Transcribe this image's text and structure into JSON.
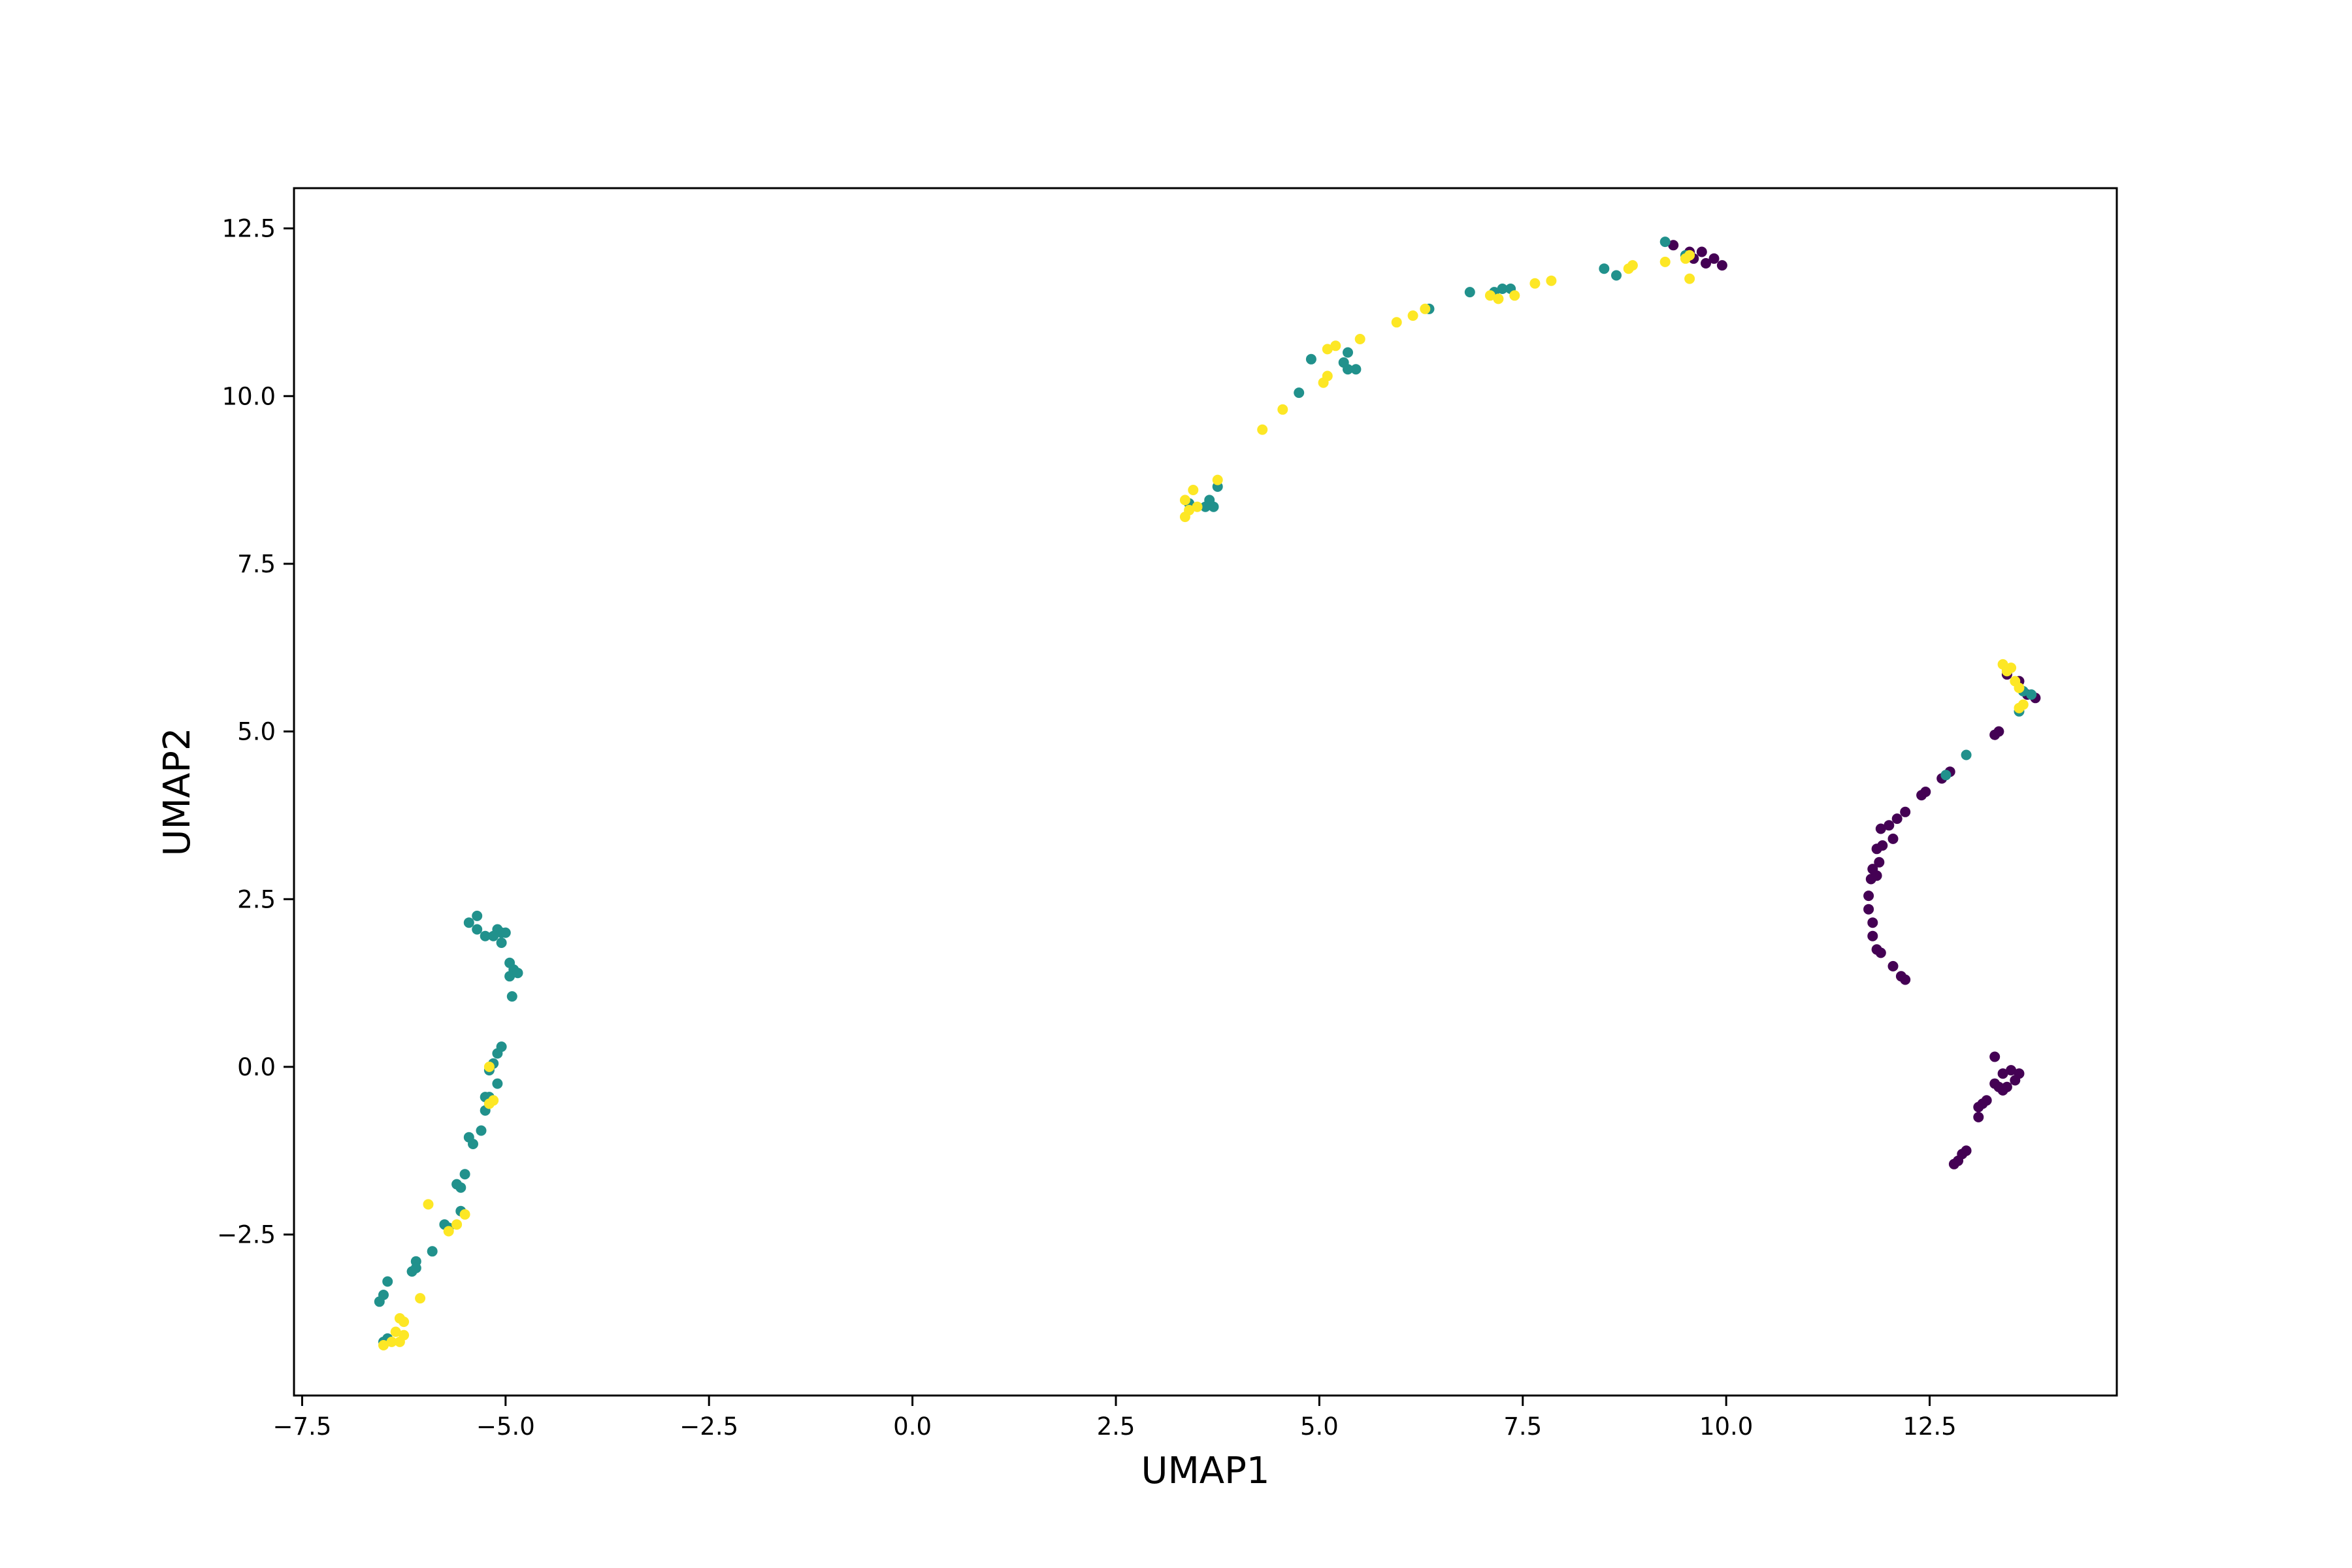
{
  "chart_data": {
    "type": "scatter",
    "xlabel": "UMAP1",
    "ylabel": "UMAP2",
    "xlim": [
      -7.6,
      14.8
    ],
    "ylim": [
      -4.9,
      13.1
    ],
    "x_ticks": [
      -7.5,
      -5.0,
      -2.5,
      0.0,
      2.5,
      5.0,
      7.5,
      10.0,
      12.5
    ],
    "x_tick_labels": [
      "−7.5",
      "−5.0",
      "−2.5",
      "0.0",
      "2.5",
      "5.0",
      "7.5",
      "10.0",
      "12.5"
    ],
    "y_ticks": [
      -2.5,
      0.0,
      2.5,
      5.0,
      7.5,
      10.0,
      12.5
    ],
    "y_tick_labels": [
      "−2.5",
      "0.0",
      "2.5",
      "5.0",
      "7.5",
      "10.0",
      "12.5"
    ],
    "grid": false,
    "legend": "none",
    "series": [
      {
        "color": "#440154",
        "points": [
          [
            9.35,
            12.25
          ],
          [
            9.55,
            12.15
          ],
          [
            9.7,
            12.15
          ],
          [
            9.75,
            11.98
          ],
          [
            9.85,
            12.05
          ],
          [
            9.95,
            11.95
          ],
          [
            9.6,
            12.05
          ],
          [
            13.45,
            5.85
          ],
          [
            13.6,
            5.75
          ],
          [
            13.7,
            5.55
          ],
          [
            13.8,
            5.5
          ],
          [
            13.35,
            5.0
          ],
          [
            13.3,
            4.95
          ],
          [
            12.75,
            4.4
          ],
          [
            12.65,
            4.3
          ],
          [
            12.45,
            4.1
          ],
          [
            12.4,
            4.05
          ],
          [
            12.2,
            3.8
          ],
          [
            12.1,
            3.7
          ],
          [
            12.0,
            3.6
          ],
          [
            11.9,
            3.55
          ],
          [
            12.05,
            3.4
          ],
          [
            11.92,
            3.3
          ],
          [
            11.85,
            3.25
          ],
          [
            11.88,
            3.05
          ],
          [
            11.8,
            2.95
          ],
          [
            11.85,
            2.85
          ],
          [
            11.78,
            2.8
          ],
          [
            11.75,
            2.55
          ],
          [
            11.75,
            2.35
          ],
          [
            11.8,
            2.15
          ],
          [
            11.8,
            1.95
          ],
          [
            11.85,
            1.75
          ],
          [
            11.9,
            1.7
          ],
          [
            12.05,
            1.5
          ],
          [
            12.15,
            1.35
          ],
          [
            12.2,
            1.3
          ],
          [
            13.3,
            0.15
          ],
          [
            13.5,
            -0.05
          ],
          [
            13.4,
            -0.1
          ],
          [
            13.6,
            -0.1
          ],
          [
            13.55,
            -0.2
          ],
          [
            13.3,
            -0.25
          ],
          [
            13.35,
            -0.3
          ],
          [
            13.45,
            -0.3
          ],
          [
            13.2,
            -0.5
          ],
          [
            13.15,
            -0.55
          ],
          [
            13.1,
            -0.6
          ],
          [
            13.4,
            -0.35
          ],
          [
            13.1,
            -0.75
          ],
          [
            12.9,
            -1.3
          ],
          [
            12.95,
            -1.25
          ],
          [
            12.85,
            -1.4
          ],
          [
            12.8,
            -1.45
          ]
        ]
      },
      {
        "color": "#21918c",
        "points": [
          [
            9.25,
            12.3
          ],
          [
            9.5,
            12.1
          ],
          [
            8.5,
            11.9
          ],
          [
            8.65,
            11.8
          ],
          [
            7.25,
            11.6
          ],
          [
            7.35,
            11.6
          ],
          [
            7.15,
            11.55
          ],
          [
            6.85,
            11.55
          ],
          [
            6.35,
            11.3
          ],
          [
            5.35,
            10.65
          ],
          [
            5.3,
            10.5
          ],
          [
            5.45,
            10.4
          ],
          [
            5.35,
            10.4
          ],
          [
            4.9,
            10.55
          ],
          [
            4.75,
            10.05
          ],
          [
            3.75,
            8.65
          ],
          [
            3.65,
            8.45
          ],
          [
            3.7,
            8.35
          ],
          [
            3.6,
            8.35
          ],
          [
            3.4,
            8.4
          ],
          [
            13.45,
            5.9
          ],
          [
            13.65,
            5.6
          ],
          [
            13.75,
            5.55
          ],
          [
            13.6,
            5.3
          ],
          [
            12.95,
            4.65
          ],
          [
            12.7,
            4.35
          ],
          [
            -5.45,
            2.15
          ],
          [
            -5.35,
            2.25
          ],
          [
            -5.35,
            2.05
          ],
          [
            -5.25,
            1.95
          ],
          [
            -5.1,
            2.05
          ],
          [
            -5.15,
            1.95
          ],
          [
            -5.05,
            2.0
          ],
          [
            -5.0,
            2.0
          ],
          [
            -5.05,
            1.85
          ],
          [
            -4.95,
            1.55
          ],
          [
            -4.95,
            1.35
          ],
          [
            -4.9,
            1.45
          ],
          [
            -4.85,
            1.4
          ],
          [
            -4.92,
            1.05
          ],
          [
            -5.05,
            0.3
          ],
          [
            -5.1,
            0.2
          ],
          [
            -5.15,
            0.05
          ],
          [
            -5.2,
            -0.05
          ],
          [
            -5.1,
            -0.25
          ],
          [
            -5.2,
            -0.45
          ],
          [
            -5.25,
            -0.45
          ],
          [
            -5.25,
            -0.65
          ],
          [
            -5.3,
            -0.95
          ],
          [
            -5.4,
            -1.15
          ],
          [
            -5.45,
            -1.05
          ],
          [
            -5.5,
            -1.6
          ],
          [
            -5.55,
            -1.8
          ],
          [
            -5.6,
            -1.75
          ],
          [
            -5.55,
            -2.15
          ],
          [
            -5.7,
            -2.4
          ],
          [
            -5.75,
            -2.35
          ],
          [
            -5.9,
            -2.75
          ],
          [
            -6.1,
            -2.9
          ],
          [
            -6.15,
            -3.05
          ],
          [
            -6.1,
            -3.0
          ],
          [
            -6.45,
            -3.2
          ],
          [
            -6.5,
            -3.4
          ],
          [
            -6.55,
            -3.5
          ],
          [
            -6.45,
            -4.05
          ],
          [
            -6.5,
            -4.1
          ]
        ]
      },
      {
        "color": "#fde725",
        "points": [
          [
            9.55,
            12.1
          ],
          [
            9.5,
            12.05
          ],
          [
            9.25,
            12.0
          ],
          [
            9.55,
            11.75
          ],
          [
            8.85,
            11.95
          ],
          [
            8.8,
            11.9
          ],
          [
            7.85,
            11.72
          ],
          [
            7.65,
            11.68
          ],
          [
            7.4,
            11.5
          ],
          [
            7.2,
            11.45
          ],
          [
            7.1,
            11.5
          ],
          [
            6.3,
            11.3
          ],
          [
            6.15,
            11.2
          ],
          [
            5.95,
            11.1
          ],
          [
            5.5,
            10.85
          ],
          [
            5.2,
            10.75
          ],
          [
            5.1,
            10.7
          ],
          [
            5.1,
            10.3
          ],
          [
            5.05,
            10.2
          ],
          [
            4.55,
            9.8
          ],
          [
            4.3,
            9.5
          ],
          [
            3.75,
            8.75
          ],
          [
            3.45,
            8.6
          ],
          [
            3.35,
            8.45
          ],
          [
            3.5,
            8.35
          ],
          [
            3.4,
            8.3
          ],
          [
            3.35,
            8.2
          ],
          [
            13.4,
            6.0
          ],
          [
            13.5,
            5.95
          ],
          [
            13.45,
            5.9
          ],
          [
            13.55,
            5.75
          ],
          [
            13.6,
            5.65
          ],
          [
            13.65,
            5.4
          ],
          [
            13.6,
            5.35
          ],
          [
            -5.2,
            0.0
          ],
          [
            -5.15,
            -0.5
          ],
          [
            -5.2,
            -0.55
          ],
          [
            -5.5,
            -2.2
          ],
          [
            -5.6,
            -2.35
          ],
          [
            -5.7,
            -2.45
          ],
          [
            -5.95,
            -2.05
          ],
          [
            -6.05,
            -3.45
          ],
          [
            -6.3,
            -3.75
          ],
          [
            -6.25,
            -3.8
          ],
          [
            -6.35,
            -3.95
          ],
          [
            -6.25,
            -4.0
          ],
          [
            -6.3,
            -4.1
          ],
          [
            -6.4,
            -4.1
          ],
          [
            -6.5,
            -4.15
          ]
        ]
      }
    ]
  }
}
